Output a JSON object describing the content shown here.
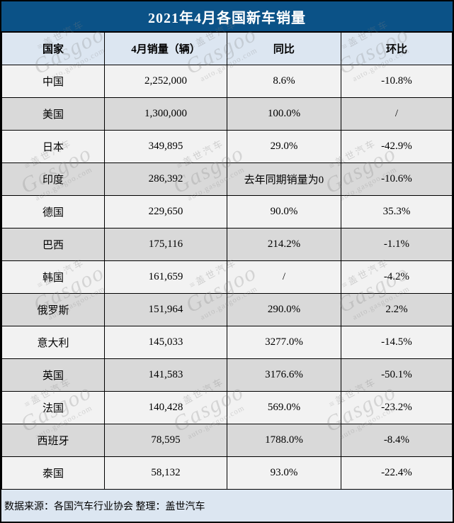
{
  "title": "2021年4月各国新车销量",
  "table": {
    "columns": [
      "国家",
      "4月销量（辆）",
      "同比",
      "环比"
    ],
    "rows": [
      {
        "country": "中国",
        "sales": "2,252,000",
        "yoy": "8.6%",
        "yoy_color": "red",
        "mom": "-10.8%",
        "mom_color": "green"
      },
      {
        "country": "美国",
        "sales": "1,300,000",
        "yoy": "100.0%",
        "yoy_color": "red",
        "mom": "/",
        "mom_color": "black"
      },
      {
        "country": "日本",
        "sales": "349,895",
        "yoy": "29.0%",
        "yoy_color": "red",
        "mom": "-42.9%",
        "mom_color": "green"
      },
      {
        "country": "印度",
        "sales": "286,392",
        "yoy": "去年同期销量为0",
        "yoy_color": "black",
        "mom": "-10.6%",
        "mom_color": "green"
      },
      {
        "country": "德国",
        "sales": "229,650",
        "yoy": "90.0%",
        "yoy_color": "red",
        "mom": "35.3%",
        "mom_color": "red"
      },
      {
        "country": "巴西",
        "sales": "175,116",
        "yoy": "214.2%",
        "yoy_color": "red",
        "mom": "-1.1%",
        "mom_color": "green"
      },
      {
        "country": "韩国",
        "sales": "161,659",
        "yoy": "/",
        "yoy_color": "black",
        "mom": "-4.2%",
        "mom_color": "green"
      },
      {
        "country": "俄罗斯",
        "sales": "151,964",
        "yoy": "290.0%",
        "yoy_color": "red",
        "mom": "2.2%",
        "mom_color": "red"
      },
      {
        "country": "意大利",
        "sales": "145,033",
        "yoy": "3277.0%",
        "yoy_color": "red",
        "mom": "-14.5%",
        "mom_color": "green"
      },
      {
        "country": "英国",
        "sales": "141,583",
        "yoy": "3176.6%",
        "yoy_color": "red",
        "mom": "-50.1%",
        "mom_color": "green"
      },
      {
        "country": "法国",
        "sales": "140,428",
        "yoy": "569.0%",
        "yoy_color": "red",
        "mom": "-23.2%",
        "mom_color": "green"
      },
      {
        "country": "西班牙",
        "sales": "78,595",
        "yoy": "1788.0%",
        "yoy_color": "red",
        "mom": "-8.4%",
        "mom_color": "green"
      },
      {
        "country": "泰国",
        "sales": "58,132",
        "yoy": "93.0%",
        "yoy_color": "red",
        "mom": "-22.4%",
        "mom_color": "green"
      }
    ]
  },
  "footer": {
    "text": "数据来源：各国汽车行业协会 整理：盖世汽车"
  },
  "watermark": {
    "brand_cn": "盖世汽车",
    "brand_en": "Gasgoo",
    "url": "auto.gasgoo.com",
    "logo_glyph": "≡"
  },
  "colors": {
    "title_bg": "#0b5287",
    "header_bg": "#dce6f1",
    "footer_bg": "#dce6f1",
    "row_light": "#f2f2f2",
    "row_dark": "#d9d9d9",
    "increase_red": "#ff0000",
    "decrease_green": "#00b050"
  },
  "chart_data": {
    "type": "table",
    "title": "2021年4月各国新车销量",
    "columns": [
      "国家",
      "4月销量（辆）",
      "同比",
      "环比"
    ],
    "rows": [
      [
        "中国",
        "2,252,000",
        "8.6%",
        "-10.8%"
      ],
      [
        "美国",
        "1,300,000",
        "100.0%",
        "/"
      ],
      [
        "日本",
        "349,895",
        "29.0%",
        "-42.9%"
      ],
      [
        "印度",
        "286,392",
        "去年同期销量为0",
        "-10.6%"
      ],
      [
        "德国",
        "229,650",
        "90.0%",
        "35.3%"
      ],
      [
        "巴西",
        "175,116",
        "214.2%",
        "-1.1%"
      ],
      [
        "韩国",
        "161,659",
        "/",
        "-4.2%"
      ],
      [
        "俄罗斯",
        "151,964",
        "290.0%",
        "2.2%"
      ],
      [
        "意大利",
        "145,033",
        "3277.0%",
        "-14.5%"
      ],
      [
        "英国",
        "141,583",
        "3176.6%",
        "-50.1%"
      ],
      [
        "法国",
        "140,428",
        "569.0%",
        "-23.2%"
      ],
      [
        "西班牙",
        "78,595",
        "1788.0%",
        "-8.4%"
      ],
      [
        "泰国",
        "58,132",
        "93.0%",
        "-22.4%"
      ]
    ],
    "notes": "数据来源：各国汽车行业协会 整理：盖世汽车"
  }
}
